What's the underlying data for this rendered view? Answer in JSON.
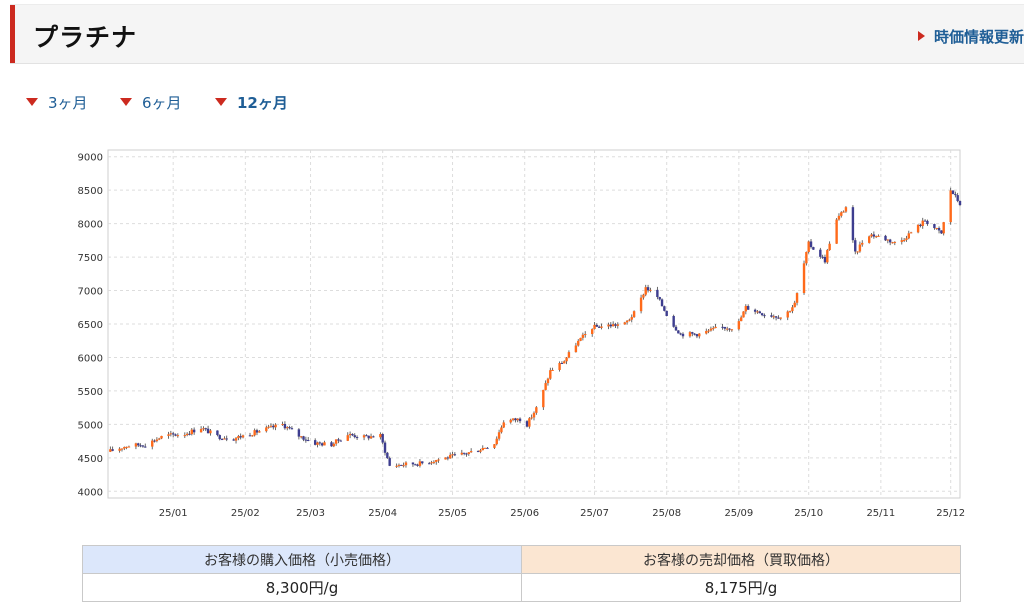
{
  "header": {
    "title": "プラチナ",
    "refresh_label": "時価情報更新"
  },
  "tabs": [
    {
      "label": "3ヶ月",
      "active": false
    },
    {
      "label": "6ヶ月",
      "active": false
    },
    {
      "label": "12ヶ月",
      "active": true
    }
  ],
  "colors": {
    "accent": "#cc2a1f",
    "link": "#1f5e96",
    "up_candle": "#ff6a1a",
    "down_candle": "#3d3d8f",
    "buy_header_bg": "#dce7fb",
    "sell_header_bg": "#fbe6d2"
  },
  "chart_data": {
    "type": "candlestick",
    "title": "",
    "xlabel": "",
    "ylabel": "",
    "ylim": [
      3900,
      9100
    ],
    "yticks": [
      4000,
      4500,
      5000,
      5500,
      6000,
      6500,
      7000,
      7500,
      8000,
      8500,
      9000
    ],
    "grid": true,
    "x_start": "2024-12-04",
    "x_end": "2025-12-05",
    "xticks": [
      {
        "label": "25/01",
        "date": "2025-01-01"
      },
      {
        "label": "25/02",
        "date": "2025-02-01"
      },
      {
        "label": "25/03",
        "date": "2025-03-01"
      },
      {
        "label": "25/04",
        "date": "2025-04-01"
      },
      {
        "label": "25/05",
        "date": "2025-05-01"
      },
      {
        "label": "25/06",
        "date": "2025-06-01"
      },
      {
        "label": "25/07",
        "date": "2025-07-01"
      },
      {
        "label": "25/08",
        "date": "2025-08-01"
      },
      {
        "label": "25/09",
        "date": "2025-09-01"
      },
      {
        "label": "25/10",
        "date": "2025-10-01"
      },
      {
        "label": "25/11",
        "date": "2025-11-01"
      },
      {
        "label": "25/12",
        "date": "2025-12-01"
      }
    ],
    "close_trend": [
      [
        "2024-12-04",
        4590
      ],
      [
        "2024-12-12",
        4680
      ],
      [
        "2024-12-20",
        4700
      ],
      [
        "2024-12-28",
        4830
      ],
      [
        "2025-01-06",
        4860
      ],
      [
        "2025-01-13",
        4950
      ],
      [
        "2025-01-20",
        4820
      ],
      [
        "2025-01-27",
        4790
      ],
      [
        "2025-02-03",
        4860
      ],
      [
        "2025-02-10",
        4930
      ],
      [
        "2025-02-17",
        5000
      ],
      [
        "2025-02-24",
        4830
      ],
      [
        "2025-03-03",
        4720
      ],
      [
        "2025-03-10",
        4700
      ],
      [
        "2025-03-17",
        4850
      ],
      [
        "2025-03-24",
        4810
      ],
      [
        "2025-03-31",
        4830
      ],
      [
        "2025-04-04",
        4380
      ],
      [
        "2025-04-09",
        4400
      ],
      [
        "2025-04-18",
        4420
      ],
      [
        "2025-04-25",
        4480
      ],
      [
        "2025-05-05",
        4550
      ],
      [
        "2025-05-12",
        4620
      ],
      [
        "2025-05-19",
        4720
      ],
      [
        "2025-05-23",
        5050
      ],
      [
        "2025-05-30",
        5080
      ],
      [
        "2025-06-02",
        5000
      ],
      [
        "2025-06-07",
        5300
      ],
      [
        "2025-06-12",
        5800
      ],
      [
        "2025-06-18",
        5950
      ],
      [
        "2025-06-23",
        6200
      ],
      [
        "2025-06-30",
        6450
      ],
      [
        "2025-07-07",
        6480
      ],
      [
        "2025-07-14",
        6500
      ],
      [
        "2025-07-19",
        6700
      ],
      [
        "2025-07-23",
        7050
      ],
      [
        "2025-07-28",
        6900
      ],
      [
        "2025-08-03",
        6520
      ],
      [
        "2025-08-07",
        6350
      ],
      [
        "2025-08-15",
        6350
      ],
      [
        "2025-08-24",
        6450
      ],
      [
        "2025-08-31",
        6450
      ],
      [
        "2025-09-04",
        6750
      ],
      [
        "2025-09-12",
        6650
      ],
      [
        "2025-09-20",
        6600
      ],
      [
        "2025-09-25",
        6800
      ],
      [
        "2025-10-01",
        7700
      ],
      [
        "2025-10-08",
        7450
      ],
      [
        "2025-10-12",
        8000
      ],
      [
        "2025-10-17",
        8250
      ],
      [
        "2025-10-21",
        7550
      ],
      [
        "2025-10-26",
        7850
      ],
      [
        "2025-11-01",
        7800
      ],
      [
        "2025-11-08",
        7700
      ],
      [
        "2025-11-15",
        7900
      ],
      [
        "2025-11-20",
        8050
      ],
      [
        "2025-11-27",
        7850
      ],
      [
        "2025-12-01",
        8500
      ],
      [
        "2025-12-05",
        8300
      ]
    ]
  },
  "price_table": {
    "buy_header": "お客様の購入価格（小売価格）",
    "sell_header": "お客様の売却価格（買取価格）",
    "buy_value": "8,300円/g",
    "sell_value": "8,175円/g"
  }
}
